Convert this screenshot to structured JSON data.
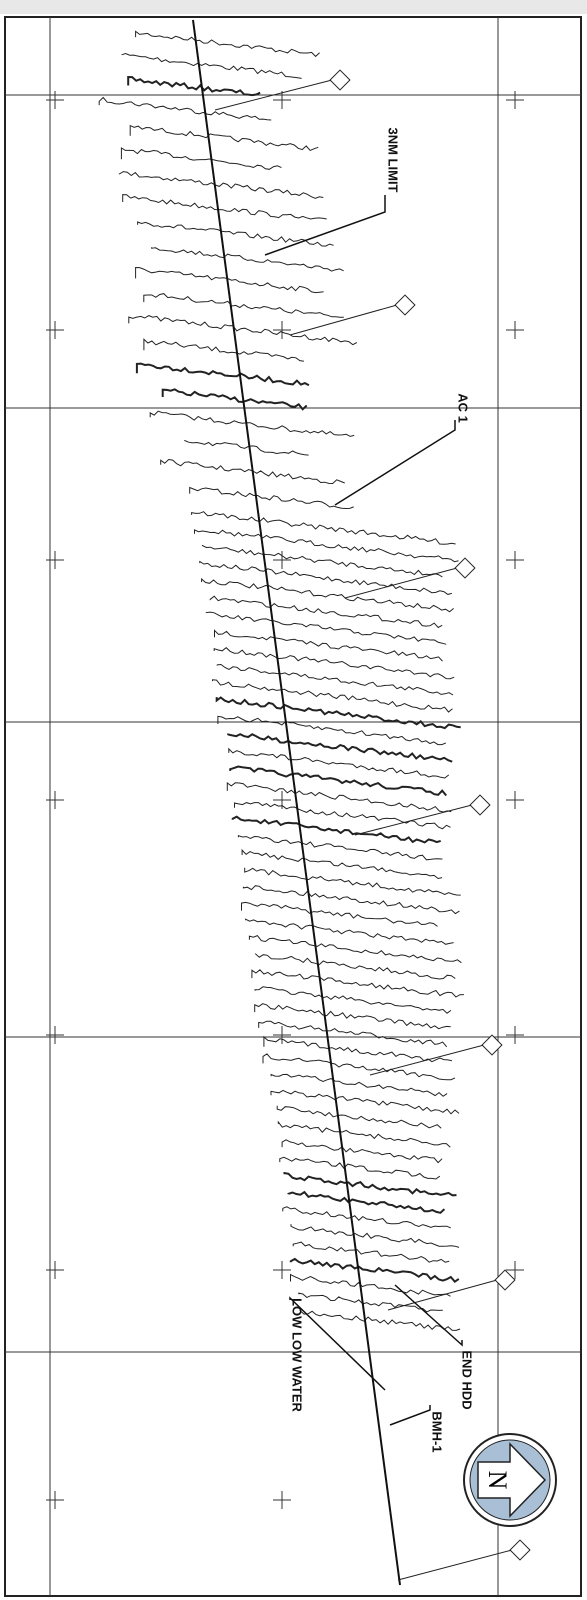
{
  "labels": {
    "limit": "3NM LIMIT",
    "cable": "AC 1",
    "low_water": "LOW LOW WATER",
    "end_hdd": "END HDD",
    "manhole": "BMH-1",
    "north": "N"
  }
}
